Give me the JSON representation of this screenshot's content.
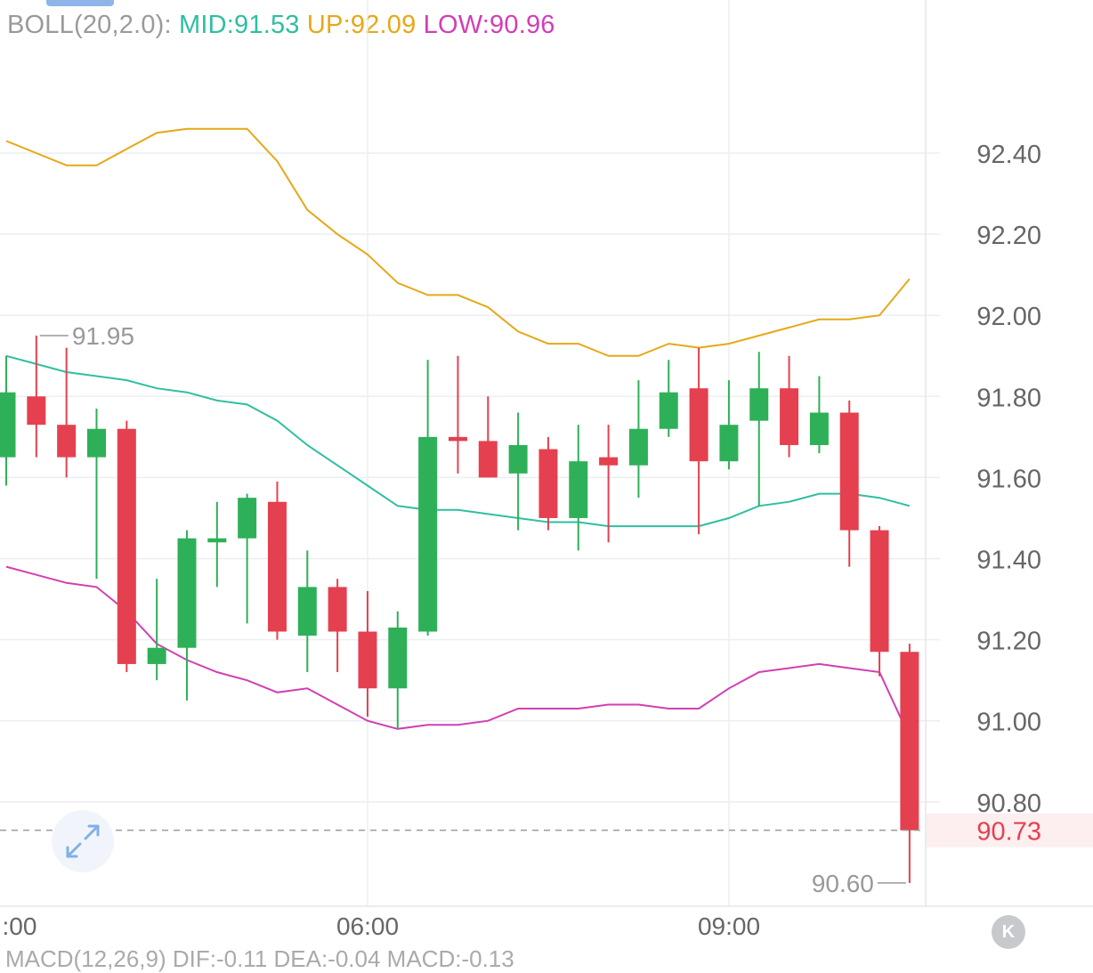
{
  "boll_legend": {
    "label": "BOLL(20,2.0):",
    "mid": "MID:91.53",
    "up": "UP:92.09",
    "low": "LOW:90.96"
  },
  "colors": {
    "mid": "#2fbf9f",
    "up": "#e6a817",
    "low": "#d13fb3",
    "bull": "#2eb058",
    "bear": "#e5404f",
    "grid": "#eceef1",
    "axis_text": "#666666",
    "current_price": "#e5404f"
  },
  "chart_data": {
    "type": "candlestick",
    "title": "",
    "xlabel": "",
    "ylabel": "",
    "ylim": [
      90.56,
      92.65
    ],
    "y_ticks": [
      "92.40",
      "92.20",
      "92.00",
      "91.80",
      "91.60",
      "91.40",
      "91.20",
      "91.00",
      "90.80"
    ],
    "x_ticks": [
      ":00",
      "06:00",
      "09:00"
    ],
    "current_price": 90.73,
    "current_price_label": "90.73",
    "high_marker": {
      "value": 91.95,
      "label": "91.95"
    },
    "low_marker": {
      "value": 90.6,
      "label": "90.60"
    },
    "candles": [
      {
        "o": 91.65,
        "h": 91.9,
        "l": 91.58,
        "c": 91.81
      },
      {
        "o": 91.8,
        "h": 91.95,
        "l": 91.65,
        "c": 91.73
      },
      {
        "o": 91.73,
        "h": 91.92,
        "l": 91.6,
        "c": 91.65
      },
      {
        "o": 91.65,
        "h": 91.77,
        "l": 91.35,
        "c": 91.72
      },
      {
        "o": 91.72,
        "h": 91.74,
        "l": 91.12,
        "c": 91.14
      },
      {
        "o": 91.14,
        "h": 91.35,
        "l": 91.1,
        "c": 91.18
      },
      {
        "o": 91.18,
        "h": 91.47,
        "l": 91.05,
        "c": 91.45
      },
      {
        "o": 91.44,
        "h": 91.54,
        "l": 91.33,
        "c": 91.45
      },
      {
        "o": 91.45,
        "h": 91.56,
        "l": 91.24,
        "c": 91.55
      },
      {
        "o": 91.54,
        "h": 91.59,
        "l": 91.2,
        "c": 91.22
      },
      {
        "o": 91.21,
        "h": 91.42,
        "l": 91.12,
        "c": 91.33
      },
      {
        "o": 91.33,
        "h": 91.35,
        "l": 91.12,
        "c": 91.22
      },
      {
        "o": 91.22,
        "h": 91.32,
        "l": 91.01,
        "c": 91.08
      },
      {
        "o": 91.08,
        "h": 91.27,
        "l": 90.98,
        "c": 91.23
      },
      {
        "o": 91.22,
        "h": 91.89,
        "l": 91.21,
        "c": 91.7
      },
      {
        "o": 91.7,
        "h": 91.9,
        "l": 91.61,
        "c": 91.69
      },
      {
        "o": 91.69,
        "h": 91.8,
        "l": 91.6,
        "c": 91.6
      },
      {
        "o": 91.61,
        "h": 91.76,
        "l": 91.47,
        "c": 91.68
      },
      {
        "o": 91.67,
        "h": 91.7,
        "l": 91.47,
        "c": 91.5
      },
      {
        "o": 91.5,
        "h": 91.73,
        "l": 91.42,
        "c": 91.64
      },
      {
        "o": 91.65,
        "h": 91.73,
        "l": 91.44,
        "c": 91.63
      },
      {
        "o": 91.63,
        "h": 91.84,
        "l": 91.55,
        "c": 91.72
      },
      {
        "o": 91.72,
        "h": 91.89,
        "l": 91.7,
        "c": 91.81
      },
      {
        "o": 91.82,
        "h": 91.92,
        "l": 91.46,
        "c": 91.64
      },
      {
        "o": 91.64,
        "h": 91.84,
        "l": 91.62,
        "c": 91.73
      },
      {
        "o": 91.74,
        "h": 91.91,
        "l": 91.53,
        "c": 91.82
      },
      {
        "o": 91.82,
        "h": 91.9,
        "l": 91.65,
        "c": 91.68
      },
      {
        "o": 91.68,
        "h": 91.85,
        "l": 91.66,
        "c": 91.76
      },
      {
        "o": 91.76,
        "h": 91.79,
        "l": 91.38,
        "c": 91.47
      },
      {
        "o": 91.47,
        "h": 91.48,
        "l": 91.11,
        "c": 91.17
      },
      {
        "o": 91.17,
        "h": 91.19,
        "l": 90.6,
        "c": 90.73
      }
    ],
    "series": [
      {
        "name": "UP",
        "values": [
          92.43,
          92.4,
          92.37,
          92.37,
          92.41,
          92.45,
          92.46,
          92.46,
          92.46,
          92.38,
          92.26,
          92.2,
          92.15,
          92.08,
          92.05,
          92.05,
          92.02,
          91.96,
          91.93,
          91.93,
          91.9,
          91.9,
          91.93,
          91.92,
          91.93,
          91.95,
          91.97,
          91.99,
          91.99,
          92.0,
          92.09
        ]
      },
      {
        "name": "MID",
        "values": [
          91.9,
          91.88,
          91.86,
          91.85,
          91.84,
          91.82,
          91.81,
          91.79,
          91.78,
          91.74,
          91.68,
          91.63,
          91.58,
          91.53,
          91.52,
          91.52,
          91.51,
          91.5,
          91.49,
          91.49,
          91.48,
          91.48,
          91.48,
          91.48,
          91.5,
          91.53,
          91.54,
          91.56,
          91.56,
          91.55,
          91.53
        ]
      },
      {
        "name": "LOW",
        "values": [
          91.38,
          91.36,
          91.34,
          91.33,
          91.27,
          91.19,
          91.15,
          91.12,
          91.1,
          91.07,
          91.08,
          91.04,
          91.0,
          90.98,
          90.99,
          90.99,
          91.0,
          91.03,
          91.03,
          91.03,
          91.04,
          91.04,
          91.03,
          91.03,
          91.08,
          91.12,
          91.13,
          91.14,
          91.13,
          91.12,
          90.96
        ]
      }
    ]
  },
  "macd_peek": "MACD(12,26,9) DIF:-0.11 DEA:-0.04 MACD:-0.13",
  "k_button": "K"
}
